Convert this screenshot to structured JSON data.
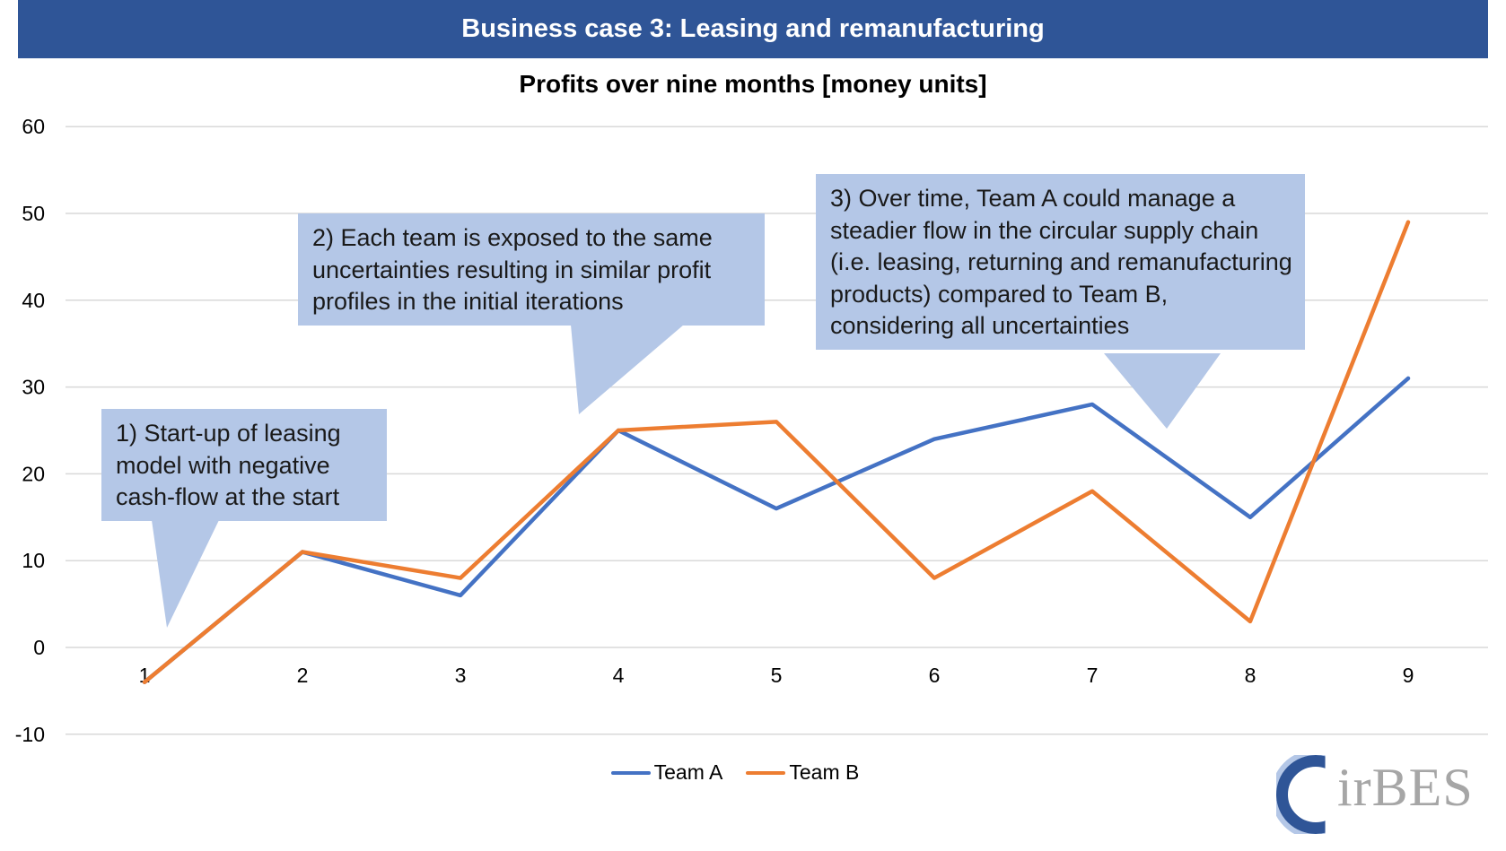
{
  "banner": {
    "title": "Business case 3: Leasing and remanufacturing"
  },
  "callouts": {
    "c1": "1) Start-up of leasing model with negative cash-flow at the start",
    "c2": "2) Each team is exposed to the same uncertainties resulting in similar profit profiles in the initial iterations",
    "c3": "3) Over time, Team A could manage a steadier flow in the circular supply chain (i.e. leasing, returning and remanufacturing products) compared to Team B, considering all uncertainties"
  },
  "logo": {
    "text": "irBES"
  },
  "colors": {
    "banner": "#2f5597",
    "callout": "#b4c7e7",
    "team_a": "#4472c4",
    "team_b": "#ed7d31",
    "grid": "#d9d9d9"
  },
  "chart_data": {
    "type": "line",
    "title": "Profits over nine months [money units]",
    "xlabel": "",
    "ylabel": "",
    "categories": [
      "1",
      "2",
      "3",
      "4",
      "5",
      "6",
      "7",
      "8",
      "9"
    ],
    "ylim": [
      -10,
      60
    ],
    "yticks": [
      -10,
      0,
      10,
      20,
      30,
      40,
      50,
      60
    ],
    "grid": true,
    "legend": "bottom",
    "series": [
      {
        "name": "Team A",
        "color": "#4472c4",
        "values": [
          -4,
          11,
          6,
          25,
          16,
          24,
          28,
          15,
          31
        ]
      },
      {
        "name": "Team B",
        "color": "#ed7d31",
        "values": [
          -4,
          11,
          8,
          25,
          26,
          8,
          18,
          3,
          49
        ]
      }
    ]
  }
}
